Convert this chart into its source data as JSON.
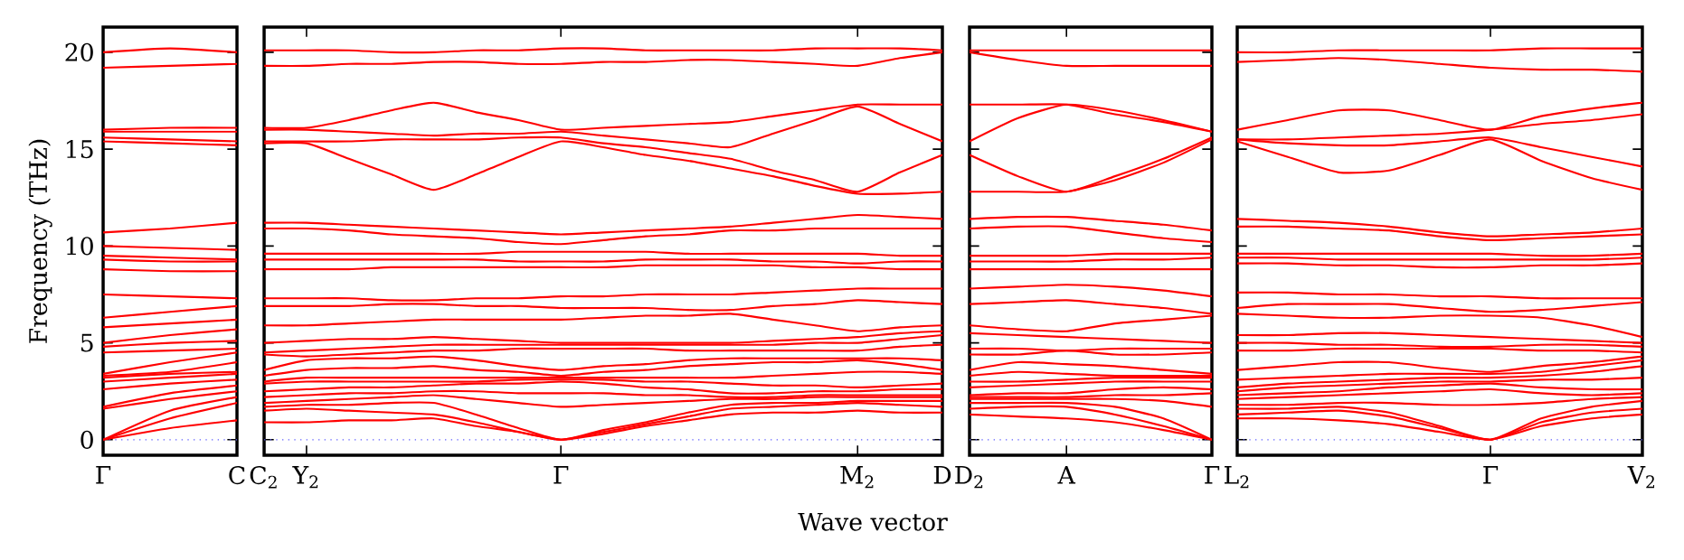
{
  "chart_data": [
    {
      "type": "line",
      "ylabel": "Frequency (THz)",
      "categories": [
        "Γ",
        null,
        "C"
      ],
      "ylim": [
        -0.8,
        21.3
      ],
      "yticks": [
        0,
        5,
        10,
        15,
        20
      ],
      "line_style": "solid",
      "ref_lines": [
        {
          "axis": "y",
          "value": 0,
          "color": "#6060ff",
          "line_style": "dotted"
        }
      ],
      "series": [
        {
          "color": "#ff0000",
          "values": [
            0,
            0.6,
            1.0
          ]
        },
        {
          "color": "#ff0000",
          "values": [
            0,
            1.1,
            1.9
          ]
        },
        {
          "color": "#ff0000",
          "values": [
            0,
            1.5,
            2.2
          ]
        },
        {
          "color": "#ff0000",
          "values": [
            1.6,
            2.1,
            2.5
          ]
        },
        {
          "color": "#ff0000",
          "values": [
            1.7,
            2.4,
            2.8
          ]
        },
        {
          "color": "#ff0000",
          "values": [
            2.6,
            2.9,
            3.1
          ]
        },
        {
          "color": "#ff0000",
          "values": [
            3.0,
            3.2,
            3.4
          ]
        },
        {
          "color": "#ff0000",
          "values": [
            3.2,
            3.4,
            3.5
          ]
        },
        {
          "color": "#ff0000",
          "values": [
            3.3,
            3.5,
            4.0
          ]
        },
        {
          "color": "#ff0000",
          "values": [
            3.4,
            4.0,
            4.5
          ]
        },
        {
          "color": "#ff0000",
          "values": [
            4.5,
            4.6,
            4.7
          ]
        },
        {
          "color": "#ff0000",
          "values": [
            4.8,
            5.0,
            5.1
          ]
        },
        {
          "color": "#ff0000",
          "values": [
            5.0,
            5.4,
            5.7
          ]
        },
        {
          "color": "#ff0000",
          "values": [
            5.8,
            6.0,
            6.2
          ]
        },
        {
          "color": "#ff0000",
          "values": [
            6.3,
            6.6,
            6.9
          ]
        },
        {
          "color": "#ff0000",
          "values": [
            7.5,
            7.4,
            7.3
          ]
        },
        {
          "color": "#ff0000",
          "values": [
            8.8,
            8.7,
            8.7
          ]
        },
        {
          "color": "#ff0000",
          "values": [
            9.3,
            9.2,
            9.2
          ]
        },
        {
          "color": "#ff0000",
          "values": [
            9.5,
            9.4,
            9.3
          ]
        },
        {
          "color": "#ff0000",
          "values": [
            10.0,
            9.9,
            9.8
          ]
        },
        {
          "color": "#ff0000",
          "values": [
            10.7,
            10.9,
            11.2
          ]
        },
        {
          "color": "#ff0000",
          "values": [
            15.4,
            15.3,
            15.2
          ]
        },
        {
          "color": "#ff0000",
          "values": [
            15.6,
            15.5,
            15.4
          ]
        },
        {
          "color": "#ff0000",
          "values": [
            15.9,
            15.9,
            15.9
          ]
        },
        {
          "color": "#ff0000",
          "values": [
            16.0,
            16.1,
            16.1
          ]
        },
        {
          "color": "#ff0000",
          "values": [
            19.2,
            19.3,
            19.4
          ]
        },
        {
          "color": "#ff0000",
          "values": [
            20.0,
            20.2,
            20.0
          ]
        }
      ]
    },
    {
      "type": "line",
      "xlabel": "Wave vector",
      "tick_labels": "x",
      "categories": [
        "C$_{2}$",
        "Y$_{2}$",
        null,
        null,
        null,
        null,
        null,
        "Γ",
        null,
        null,
        null,
        null,
        null,
        null,
        "M$_{2}$",
        null,
        "D"
      ],
      "ylim": [
        -0.8,
        21.3
      ],
      "yticks": [
        0,
        5,
        10,
        15,
        20
      ],
      "line_style": "solid",
      "ref_lines": [
        {
          "axis": "y",
          "value": 0,
          "color": "#6060ff",
          "line_style": "dotted"
        }
      ],
      "series": [
        {
          "color": "#ff0000",
          "values": [
            0.9,
            0.9,
            1.0,
            1.0,
            1.1,
            0.7,
            0.4,
            0,
            0.3,
            0.7,
            1.0,
            1.3,
            1.4,
            1.4,
            1.5,
            1.4,
            1.4
          ]
        },
        {
          "color": "#ff0000",
          "values": [
            1.5,
            1.6,
            1.5,
            1.4,
            1.3,
            0.9,
            0.4,
            0,
            0.4,
            0.8,
            1.2,
            1.6,
            1.7,
            1.8,
            1.9,
            1.8,
            1.7
          ]
        },
        {
          "color": "#ff0000",
          "values": [
            1.7,
            1.8,
            1.8,
            1.9,
            1.9,
            1.3,
            0.6,
            0,
            0.5,
            0.9,
            1.4,
            1.8,
            1.9,
            1.9,
            2.0,
            2.0,
            2.0
          ]
        },
        {
          "color": "#ff0000",
          "values": [
            1.9,
            2.0,
            2.1,
            2.2,
            2.3,
            2.1,
            1.9,
            1.7,
            1.8,
            1.9,
            2.0,
            2.1,
            2.1,
            2.2,
            2.2,
            2.2,
            2.2
          ]
        },
        {
          "color": "#ff0000",
          "values": [
            2.2,
            2.3,
            2.4,
            2.4,
            2.5,
            2.5,
            2.4,
            2.4,
            2.4,
            2.3,
            2.3,
            2.2,
            2.2,
            2.3,
            2.3,
            2.3,
            2.3
          ]
        },
        {
          "color": "#ff0000",
          "values": [
            2.5,
            2.6,
            2.7,
            2.7,
            2.8,
            2.9,
            2.9,
            3.0,
            2.9,
            2.7,
            2.6,
            2.4,
            2.4,
            2.5,
            2.5,
            2.6,
            2.6
          ]
        },
        {
          "color": "#ff0000",
          "values": [
            2.9,
            3.0,
            3.0,
            3.0,
            3.0,
            3.0,
            3.1,
            3.1,
            3.1,
            3.0,
            3.0,
            2.9,
            2.8,
            2.8,
            2.7,
            2.8,
            2.9
          ]
        },
        {
          "color": "#ff0000",
          "values": [
            3.0,
            3.2,
            3.2,
            3.2,
            3.2,
            3.2,
            3.2,
            3.2,
            3.2,
            3.2,
            3.2,
            3.2,
            3.3,
            3.4,
            3.5,
            3.5,
            3.4
          ]
        },
        {
          "color": "#ff0000",
          "values": [
            3.3,
            3.6,
            3.7,
            3.7,
            3.8,
            3.6,
            3.5,
            3.3,
            3.5,
            3.6,
            3.8,
            3.9,
            4.0,
            4.0,
            4.1,
            3.9,
            3.6
          ]
        },
        {
          "color": "#ff0000",
          "values": [
            3.6,
            4.1,
            4.2,
            4.2,
            4.3,
            4.1,
            3.8,
            3.6,
            3.8,
            3.9,
            4.1,
            4.2,
            4.2,
            4.2,
            4.2,
            4.2,
            4.1
          ]
        },
        {
          "color": "#ff0000",
          "values": [
            4.4,
            4.3,
            4.4,
            4.5,
            4.6,
            4.6,
            4.7,
            4.7,
            4.7,
            4.7,
            4.6,
            4.6,
            4.6,
            4.6,
            4.6,
            4.8,
            4.9
          ]
        },
        {
          "color": "#ff0000",
          "values": [
            4.5,
            4.6,
            4.7,
            4.8,
            4.9,
            4.9,
            4.9,
            4.9,
            4.9,
            4.9,
            4.9,
            4.9,
            4.9,
            5.0,
            5.0,
            5.2,
            5.4
          ]
        },
        {
          "color": "#ff0000",
          "values": [
            5.0,
            5.1,
            5.2,
            5.2,
            5.3,
            5.2,
            5.1,
            5.0,
            5.0,
            5.0,
            5.0,
            5.0,
            5.1,
            5.2,
            5.3,
            5.5,
            5.6
          ]
        },
        {
          "color": "#ff0000",
          "values": [
            5.9,
            5.9,
            6.0,
            6.1,
            6.2,
            6.2,
            6.2,
            6.2,
            6.3,
            6.4,
            6.4,
            6.5,
            6.2,
            5.9,
            5.6,
            5.8,
            5.9
          ]
        },
        {
          "color": "#ff0000",
          "values": [
            6.9,
            6.9,
            6.9,
            7.0,
            7.0,
            6.9,
            6.9,
            6.8,
            6.8,
            6.8,
            6.7,
            6.7,
            6.9,
            7.0,
            7.2,
            7.1,
            7.0
          ]
        },
        {
          "color": "#ff0000",
          "values": [
            7.3,
            7.3,
            7.3,
            7.2,
            7.2,
            7.3,
            7.3,
            7.4,
            7.4,
            7.5,
            7.5,
            7.5,
            7.6,
            7.7,
            7.8,
            7.8,
            7.8
          ]
        },
        {
          "color": "#ff0000",
          "values": [
            8.8,
            8.8,
            8.8,
            8.9,
            8.9,
            8.9,
            8.9,
            8.9,
            8.9,
            9.0,
            9.0,
            9.0,
            9.0,
            8.9,
            8.9,
            8.8,
            8.8
          ]
        },
        {
          "color": "#ff0000",
          "values": [
            9.3,
            9.3,
            9.3,
            9.3,
            9.3,
            9.3,
            9.2,
            9.2,
            9.2,
            9.3,
            9.3,
            9.3,
            9.2,
            9.2,
            9.1,
            9.2,
            9.2
          ]
        },
        {
          "color": "#ff0000",
          "values": [
            9.6,
            9.6,
            9.6,
            9.6,
            9.6,
            9.6,
            9.7,
            9.7,
            9.7,
            9.7,
            9.6,
            9.6,
            9.6,
            9.6,
            9.6,
            9.5,
            9.5
          ]
        },
        {
          "color": "#ff0000",
          "values": [
            10.9,
            10.9,
            10.8,
            10.6,
            10.5,
            10.4,
            10.2,
            10.1,
            10.3,
            10.5,
            10.6,
            10.8,
            10.8,
            10.9,
            10.9,
            10.9,
            10.9
          ]
        },
        {
          "color": "#ff0000",
          "values": [
            11.2,
            11.2,
            11.1,
            11.0,
            10.9,
            10.8,
            10.7,
            10.6,
            10.7,
            10.8,
            10.9,
            11.0,
            11.2,
            11.4,
            11.6,
            11.5,
            11.4
          ]
        },
        {
          "color": "#ff0000",
          "values": [
            15.3,
            15.3,
            14.5,
            13.7,
            12.9,
            13.7,
            14.6,
            15.4,
            15.1,
            14.7,
            14.4,
            14.0,
            13.6,
            13.1,
            12.7,
            12.7,
            12.8
          ]
        },
        {
          "color": "#ff0000",
          "values": [
            15.4,
            15.4,
            15.4,
            15.5,
            15.5,
            15.5,
            15.6,
            15.6,
            15.3,
            15.1,
            14.8,
            14.5,
            13.9,
            13.4,
            12.8,
            13.8,
            14.7
          ]
        },
        {
          "color": "#ff0000",
          "values": [
            16.0,
            16.0,
            15.9,
            15.8,
            15.7,
            15.8,
            15.8,
            15.9,
            15.7,
            15.5,
            15.3,
            15.1,
            15.8,
            16.5,
            17.2,
            16.3,
            15.4
          ]
        },
        {
          "color": "#ff0000",
          "values": [
            16.1,
            16.1,
            16.5,
            17.0,
            17.4,
            16.9,
            16.5,
            16.0,
            16.1,
            16.2,
            16.3,
            16.4,
            16.7,
            17.0,
            17.3,
            17.3,
            17.3
          ]
        },
        {
          "color": "#ff0000",
          "values": [
            19.3,
            19.3,
            19.4,
            19.4,
            19.5,
            19.5,
            19.4,
            19.4,
            19.5,
            19.5,
            19.6,
            19.6,
            19.5,
            19.4,
            19.3,
            19.7,
            20.0
          ]
        },
        {
          "color": "#ff0000",
          "values": [
            20.1,
            20.1,
            20.1,
            20.0,
            20.0,
            20.1,
            20.1,
            20.2,
            20.2,
            20.1,
            20.1,
            20.1,
            20.1,
            20.2,
            20.2,
            20.2,
            20.1
          ]
        }
      ]
    },
    {
      "type": "line",
      "tick_labels": "x",
      "categories": [
        "D$_{2}$",
        null,
        "A",
        null,
        null,
        "Γ"
      ],
      "ylim": [
        -0.8,
        21.3
      ],
      "yticks": [
        0,
        5,
        10,
        15,
        20
      ],
      "line_style": "solid",
      "ref_lines": [
        {
          "axis": "y",
          "value": 0,
          "color": "#6060ff",
          "line_style": "dotted"
        }
      ],
      "series": [
        {
          "color": "#ff0000",
          "values": [
            1.3,
            1.2,
            1.1,
            0.9,
            0.5,
            0
          ]
        },
        {
          "color": "#ff0000",
          "values": [
            1.6,
            1.7,
            1.7,
            1.3,
            0.7,
            0
          ]
        },
        {
          "color": "#ff0000",
          "values": [
            1.9,
            1.9,
            1.9,
            1.7,
            1.1,
            0
          ]
        },
        {
          "color": "#ff0000",
          "values": [
            2.1,
            2.1,
            2.1,
            2.1,
            2.0,
            1.7
          ]
        },
        {
          "color": "#ff0000",
          "values": [
            2.2,
            2.2,
            2.2,
            2.3,
            2.3,
            2.4
          ]
        },
        {
          "color": "#ff0000",
          "values": [
            2.3,
            2.4,
            2.4,
            2.6,
            2.7,
            2.6
          ]
        },
        {
          "color": "#ff0000",
          "values": [
            2.7,
            2.8,
            2.9,
            3.0,
            3.0,
            3.0
          ]
        },
        {
          "color": "#ff0000",
          "values": [
            3.0,
            3.0,
            3.1,
            3.2,
            3.2,
            3.2
          ]
        },
        {
          "color": "#ff0000",
          "values": [
            3.3,
            3.5,
            3.4,
            3.3,
            3.3,
            3.3
          ]
        },
        {
          "color": "#ff0000",
          "values": [
            3.6,
            4.0,
            3.9,
            3.8,
            3.6,
            3.4
          ]
        },
        {
          "color": "#ff0000",
          "values": [
            4.4,
            4.4,
            4.6,
            4.4,
            4.4,
            4.5
          ]
        },
        {
          "color": "#ff0000",
          "values": [
            4.7,
            4.7,
            4.6,
            4.7,
            4.7,
            4.7
          ]
        },
        {
          "color": "#ff0000",
          "values": [
            5.5,
            5.4,
            5.3,
            5.2,
            5.1,
            5.0
          ]
        },
        {
          "color": "#ff0000",
          "values": [
            5.9,
            5.7,
            5.6,
            6.0,
            6.2,
            6.4
          ]
        },
        {
          "color": "#ff0000",
          "values": [
            7.0,
            7.1,
            7.2,
            7.0,
            6.8,
            6.5
          ]
        },
        {
          "color": "#ff0000",
          "values": [
            7.8,
            7.9,
            8.0,
            7.9,
            7.7,
            7.4
          ]
        },
        {
          "color": "#ff0000",
          "values": [
            8.8,
            8.8,
            8.8,
            8.8,
            8.8,
            8.8
          ]
        },
        {
          "color": "#ff0000",
          "values": [
            9.2,
            9.2,
            9.2,
            9.3,
            9.3,
            9.4
          ]
        },
        {
          "color": "#ff0000",
          "values": [
            9.5,
            9.5,
            9.5,
            9.6,
            9.6,
            9.6
          ]
        },
        {
          "color": "#ff0000",
          "values": [
            10.9,
            11.0,
            11.0,
            10.7,
            10.4,
            10.2
          ]
        },
        {
          "color": "#ff0000",
          "values": [
            11.4,
            11.5,
            11.5,
            11.3,
            11.1,
            10.8
          ]
        },
        {
          "color": "#ff0000",
          "values": [
            12.8,
            12.8,
            12.8,
            13.4,
            14.3,
            15.5
          ]
        },
        {
          "color": "#ff0000",
          "values": [
            14.7,
            13.6,
            12.8,
            13.6,
            14.5,
            15.6
          ]
        },
        {
          "color": "#ff0000",
          "values": [
            15.4,
            16.6,
            17.3,
            17.0,
            16.5,
            15.9
          ]
        },
        {
          "color": "#ff0000",
          "values": [
            17.3,
            17.3,
            17.3,
            16.8,
            16.4,
            15.9
          ]
        },
        {
          "color": "#ff0000",
          "values": [
            20.0,
            19.6,
            19.3,
            19.3,
            19.3,
            19.3
          ]
        },
        {
          "color": "#ff0000",
          "values": [
            20.1,
            20.1,
            20.1,
            20.1,
            20.1,
            20.1
          ]
        }
      ]
    },
    {
      "type": "line",
      "tick_labels": "x",
      "categories": [
        "L$_{2}$",
        null,
        null,
        null,
        null,
        "Γ",
        null,
        null,
        "V$_{2}$"
      ],
      "ylim": [
        -0.8,
        21.3
      ],
      "yticks": [
        0,
        5,
        10,
        15,
        20
      ],
      "line_style": "solid",
      "ref_lines": [
        {
          "axis": "y",
          "value": 0,
          "color": "#6060ff",
          "line_style": "dotted"
        }
      ],
      "series": [
        {
          "color": "#ff0000",
          "values": [
            1.1,
            1.1,
            1.0,
            0.8,
            0.4,
            0,
            0.7,
            1.1,
            1.3
          ]
        },
        {
          "color": "#ff0000",
          "values": [
            1.3,
            1.4,
            1.5,
            1.2,
            0.6,
            0,
            0.9,
            1.4,
            1.6
          ]
        },
        {
          "color": "#ff0000",
          "values": [
            1.6,
            1.6,
            1.7,
            1.4,
            0.7,
            0,
            1.1,
            1.7,
            2.0
          ]
        },
        {
          "color": "#ff0000",
          "values": [
            1.8,
            1.8,
            1.9,
            1.9,
            1.8,
            1.8,
            1.9,
            2.1,
            2.2
          ]
        },
        {
          "color": "#ff0000",
          "values": [
            2.1,
            2.2,
            2.3,
            2.4,
            2.5,
            2.6,
            2.4,
            2.3,
            2.4
          ]
        },
        {
          "color": "#ff0000",
          "values": [
            2.3,
            2.4,
            2.5,
            2.7,
            2.8,
            2.9,
            2.7,
            2.6,
            2.6
          ]
        },
        {
          "color": "#ff0000",
          "values": [
            2.5,
            2.7,
            2.8,
            2.9,
            3.0,
            3.0,
            3.1,
            3.1,
            3.2
          ]
        },
        {
          "color": "#ff0000",
          "values": [
            2.7,
            2.9,
            3.0,
            3.1,
            3.2,
            3.2,
            3.3,
            3.5,
            3.8
          ]
        },
        {
          "color": "#ff0000",
          "values": [
            3.1,
            3.2,
            3.3,
            3.4,
            3.4,
            3.4,
            3.5,
            3.8,
            4.1
          ]
        },
        {
          "color": "#ff0000",
          "values": [
            3.6,
            3.8,
            4.0,
            4.0,
            3.7,
            3.5,
            3.8,
            4.0,
            4.3
          ]
        },
        {
          "color": "#ff0000",
          "values": [
            4.6,
            4.6,
            4.7,
            4.7,
            4.7,
            4.7,
            4.6,
            4.6,
            4.5
          ]
        },
        {
          "color": "#ff0000",
          "values": [
            5.0,
            5.0,
            4.9,
            4.9,
            4.8,
            4.8,
            4.9,
            4.9,
            4.8
          ]
        },
        {
          "color": "#ff0000",
          "values": [
            5.4,
            5.4,
            5.5,
            5.5,
            5.4,
            5.3,
            5.2,
            5.1,
            5.0
          ]
        },
        {
          "color": "#ff0000",
          "values": [
            6.5,
            6.4,
            6.3,
            6.3,
            6.4,
            6.4,
            6.3,
            5.9,
            5.3
          ]
        },
        {
          "color": "#ff0000",
          "values": [
            6.8,
            7.0,
            7.0,
            7.0,
            6.8,
            6.6,
            6.7,
            6.9,
            7.1
          ]
        },
        {
          "color": "#ff0000",
          "values": [
            7.6,
            7.6,
            7.5,
            7.5,
            7.4,
            7.4,
            7.3,
            7.3,
            7.3
          ]
        },
        {
          "color": "#ff0000",
          "values": [
            9.1,
            9.1,
            9.0,
            9.0,
            8.9,
            8.9,
            9.0,
            9.0,
            9.1
          ]
        },
        {
          "color": "#ff0000",
          "values": [
            9.4,
            9.4,
            9.3,
            9.3,
            9.3,
            9.3,
            9.3,
            9.3,
            9.4
          ]
        },
        {
          "color": "#ff0000",
          "values": [
            9.6,
            9.6,
            9.6,
            9.6,
            9.6,
            9.6,
            9.5,
            9.5,
            9.6
          ]
        },
        {
          "color": "#ff0000",
          "values": [
            11.0,
            11.0,
            10.9,
            10.8,
            10.5,
            10.3,
            10.4,
            10.5,
            10.6
          ]
        },
        {
          "color": "#ff0000",
          "values": [
            11.4,
            11.3,
            11.2,
            11.0,
            10.7,
            10.5,
            10.6,
            10.7,
            10.9
          ]
        },
        {
          "color": "#ff0000",
          "values": [
            15.4,
            14.6,
            13.8,
            13.9,
            14.7,
            15.5,
            14.4,
            13.5,
            12.9
          ]
        },
        {
          "color": "#ff0000",
          "values": [
            15.5,
            15.3,
            15.2,
            15.2,
            15.4,
            15.6,
            15.1,
            14.6,
            14.1
          ]
        },
        {
          "color": "#ff0000",
          "values": [
            15.5,
            15.5,
            15.6,
            15.7,
            15.8,
            16.0,
            16.3,
            16.5,
            16.8
          ]
        },
        {
          "color": "#ff0000",
          "values": [
            16.0,
            16.5,
            17.0,
            17.0,
            16.5,
            16.0,
            16.7,
            17.1,
            17.4
          ]
        },
        {
          "color": "#ff0000",
          "values": [
            19.5,
            19.6,
            19.7,
            19.6,
            19.4,
            19.2,
            19.1,
            19.1,
            19.0
          ]
        },
        {
          "color": "#ff0000",
          "values": [
            20.0,
            20.0,
            20.1,
            20.1,
            20.1,
            20.1,
            20.2,
            20.2,
            20.2
          ]
        }
      ]
    }
  ]
}
